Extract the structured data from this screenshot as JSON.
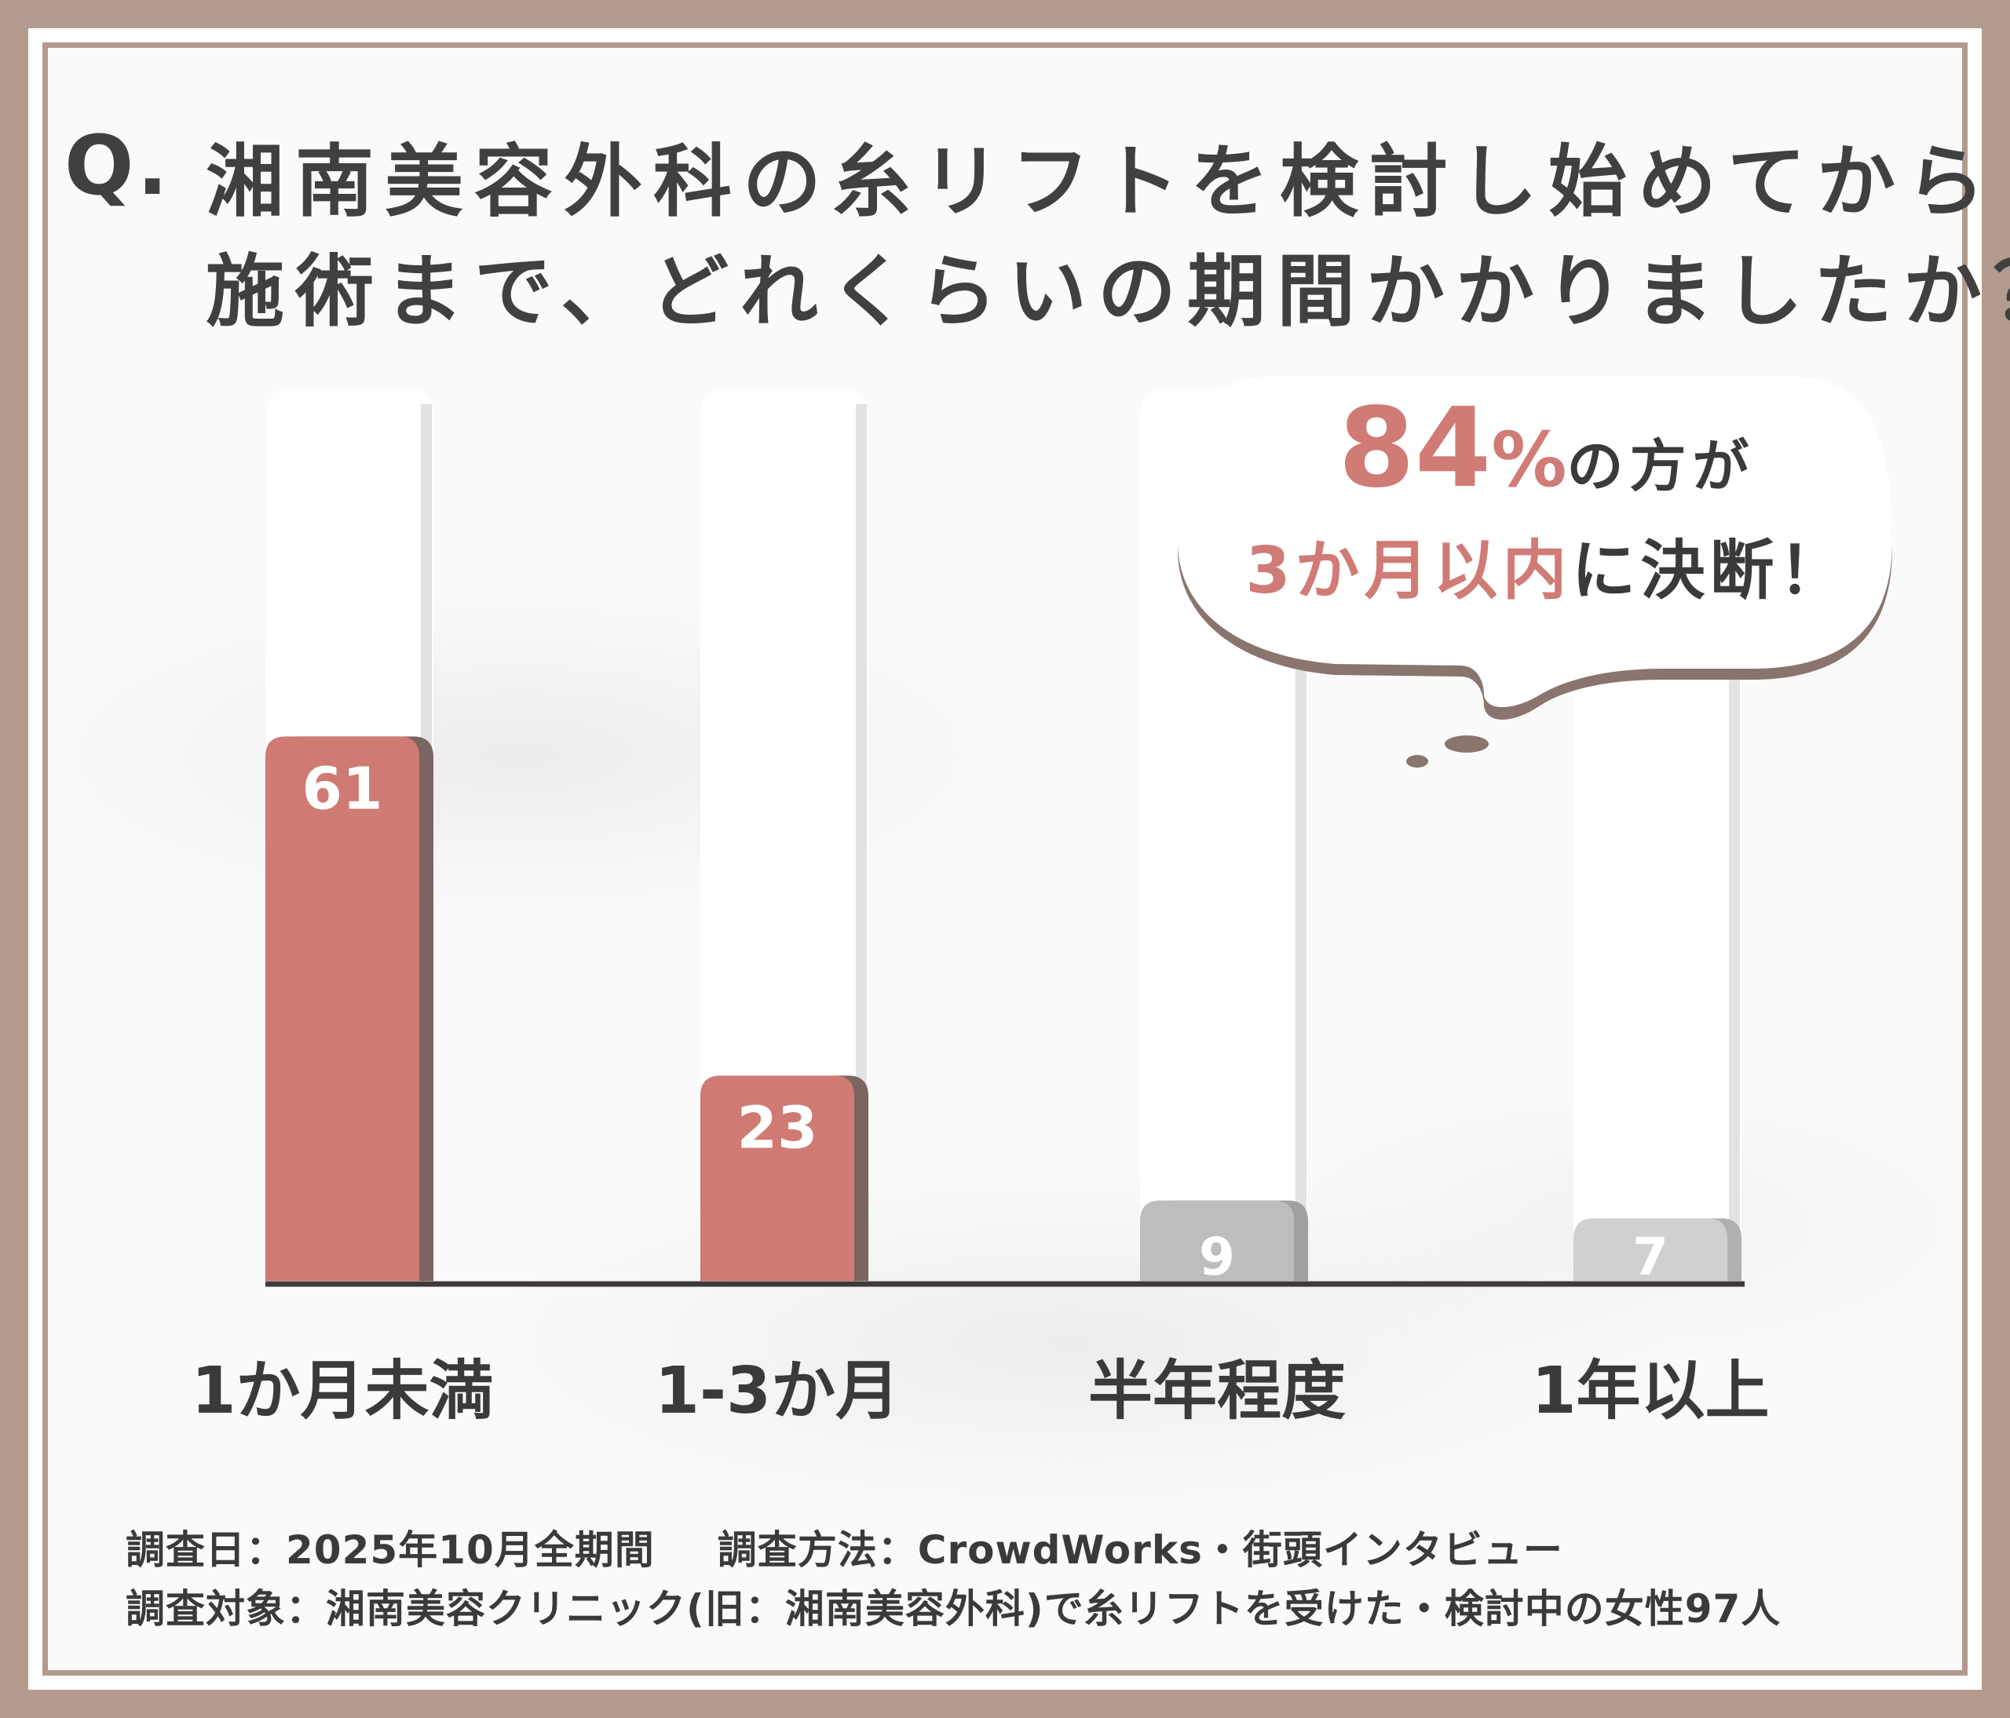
{
  "question": {
    "mark": "Q.",
    "line1": "湘南美容外科の糸リフトを検討し始めてから",
    "line2": "施術まで、どれくらいの期間かかりましたか？"
  },
  "callout": {
    "big_number": "84",
    "percent_sign": "%",
    "line1_rest": "の方が",
    "line2_highlight": "3か月以内",
    "line2_rest": "に決断！"
  },
  "chart_data": {
    "type": "bar",
    "categories": [
      "1か月未満",
      "1-3か月",
      "半年程度",
      "1年以上"
    ],
    "values": [
      61,
      23,
      9,
      7
    ],
    "value_labels": [
      "61",
      "23",
      "9",
      "7"
    ],
    "ylim": [
      0,
      100
    ],
    "colors": [
      "#cf7a73",
      "#cf7a73",
      "#bdbdbd",
      "#d0d0d0"
    ],
    "shadow_colors": [
      "#7b6560",
      "#7b6560",
      "#a0a0a0",
      "#b0b0b0"
    ],
    "grid": false,
    "legend": "none"
  },
  "footnotes": {
    "date": "調査日：2025年10月全期間",
    "method": "調査方法：CrowdWorks・街頭インタビュー",
    "target": "調査対象：湘南美容クリニック(旧：湘南美容外科)で糸リフトを受けた・検討中の女性97人"
  },
  "colors": {
    "frame": "#b39a8f",
    "accent": "#d07b76",
    "text": "#3a3a3a"
  }
}
